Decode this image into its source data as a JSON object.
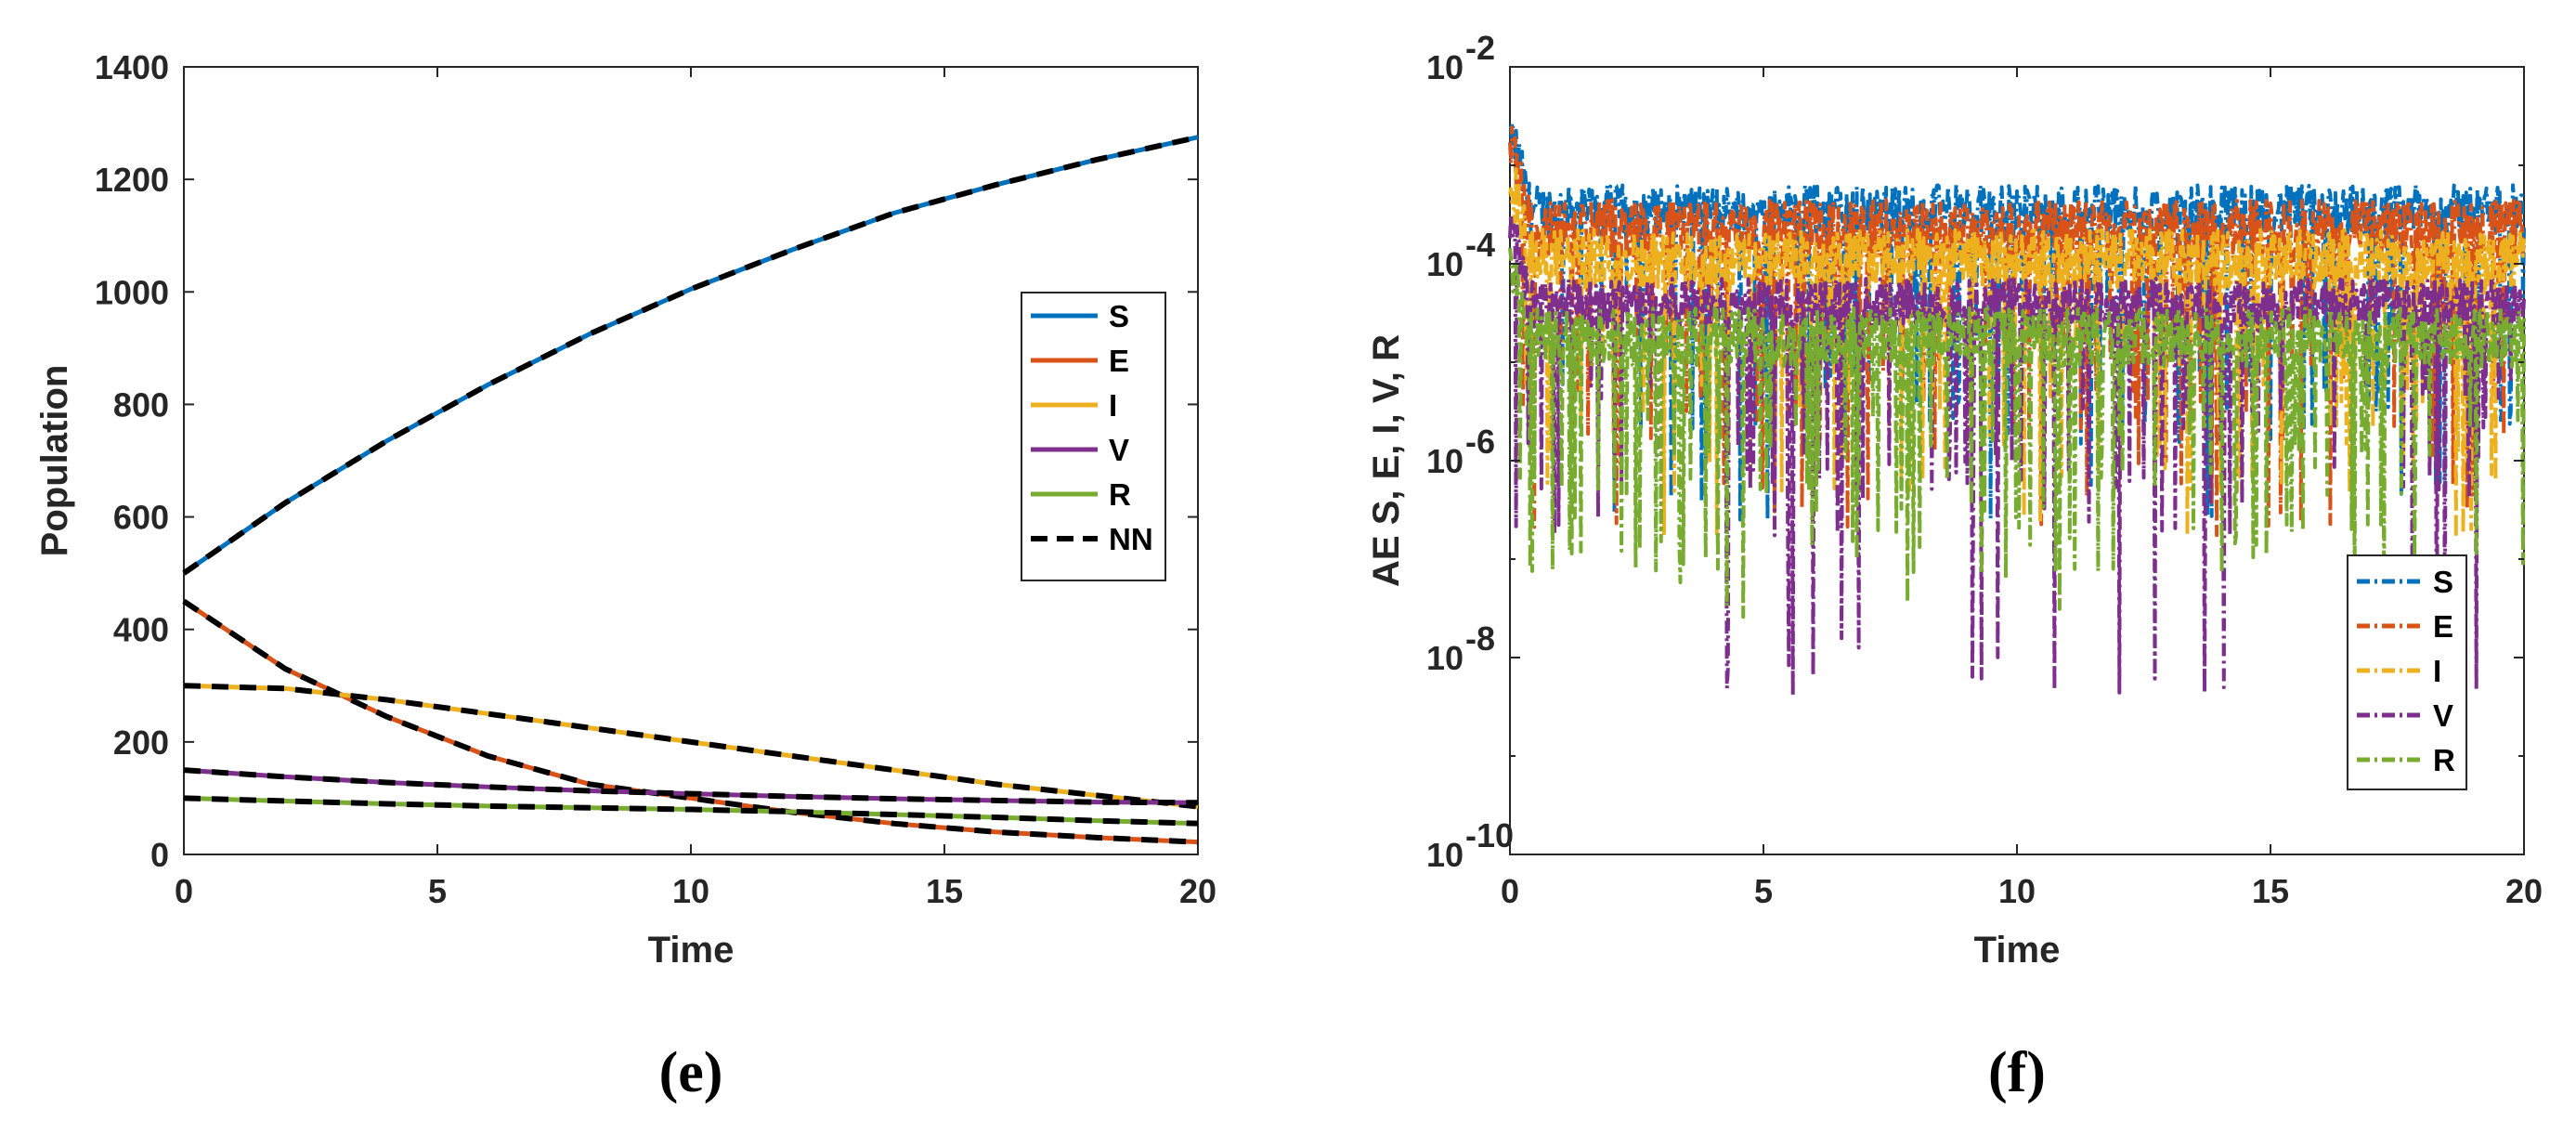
{
  "colors": {
    "S": "#0072BD",
    "E": "#D95319",
    "I": "#EDB120",
    "V": "#7E2F8E",
    "R": "#77AC30",
    "NN": "#000000",
    "axis": "#262626"
  },
  "chart_data": [
    {
      "type": "line",
      "caption": "(e)",
      "xlabel": "Time",
      "ylabel": "Population",
      "xlim": [
        0,
        20
      ],
      "ylim": [
        0,
        1400
      ],
      "xticks": [
        0,
        5,
        10,
        15,
        20
      ],
      "yticks": [
        0,
        200,
        400,
        600,
        800,
        1000,
        1200,
        1400
      ],
      "xtick_labels": [
        "0",
        "5",
        "10",
        "15",
        "20"
      ],
      "ytick_labels": [
        "0",
        "200",
        "400",
        "600",
        "800",
        "1000",
        "1200",
        "1400"
      ],
      "legend_position": "center-right",
      "legend": [
        "S",
        "E",
        "I",
        "V",
        "R",
        "NN"
      ],
      "x": [
        0,
        2,
        4,
        6,
        8,
        10,
        12,
        14,
        16,
        18,
        20
      ],
      "series": [
        {
          "name": "S",
          "values": [
            500,
            625,
            735,
            835,
            925,
            1005,
            1075,
            1140,
            1190,
            1235,
            1275
          ]
        },
        {
          "name": "E",
          "values": [
            450,
            330,
            245,
            175,
            125,
            100,
            75,
            55,
            40,
            30,
            22
          ]
        },
        {
          "name": "I",
          "values": [
            300,
            295,
            275,
            250,
            225,
            200,
            175,
            150,
            125,
            105,
            85
          ]
        },
        {
          "name": "V",
          "values": [
            150,
            138,
            128,
            120,
            113,
            108,
            103,
            99,
            96,
            93,
            92
          ]
        },
        {
          "name": "R",
          "values": [
            100,
            95,
            90,
            86,
            83,
            80,
            76,
            71,
            66,
            60,
            55
          ]
        }
      ],
      "nn_style": "dashed black overlay of each series"
    },
    {
      "type": "line",
      "caption": "(f)",
      "xlabel": "Time",
      "ylabel": "AE S, E, I, V, R",
      "yscale": "log",
      "xlim": [
        0,
        20
      ],
      "ylim_log10": [
        -10,
        -2
      ],
      "xticks": [
        0,
        5,
        10,
        15,
        20
      ],
      "xtick_labels": [
        "0",
        "5",
        "10",
        "15",
        "20"
      ],
      "yticks_log10": [
        -10,
        -8,
        -6,
        -4,
        -2
      ],
      "ytick_base": "10",
      "ytick_exponents": [
        "-10",
        "-8",
        "-6",
        "-4",
        "-2"
      ],
      "legend_position": "bottom-right",
      "legend": [
        "S",
        "E",
        "I",
        "V",
        "R"
      ],
      "series": [
        {
          "name": "S",
          "typical_log10": -3.45,
          "spread": 0.25,
          "dip_log10": -6.6
        },
        {
          "name": "E",
          "typical_log10": -3.65,
          "spread": 0.3,
          "dip_log10": -6.8
        },
        {
          "name": "I",
          "typical_log10": -3.95,
          "spread": 0.3,
          "dip_log10": -6.8
        },
        {
          "name": "V",
          "typical_log10": -4.4,
          "spread": 0.25,
          "dip_log10": -8.4
        },
        {
          "name": "R",
          "typical_log10": -4.75,
          "spread": 0.3,
          "dip_log10": -7.6
        }
      ]
    }
  ]
}
